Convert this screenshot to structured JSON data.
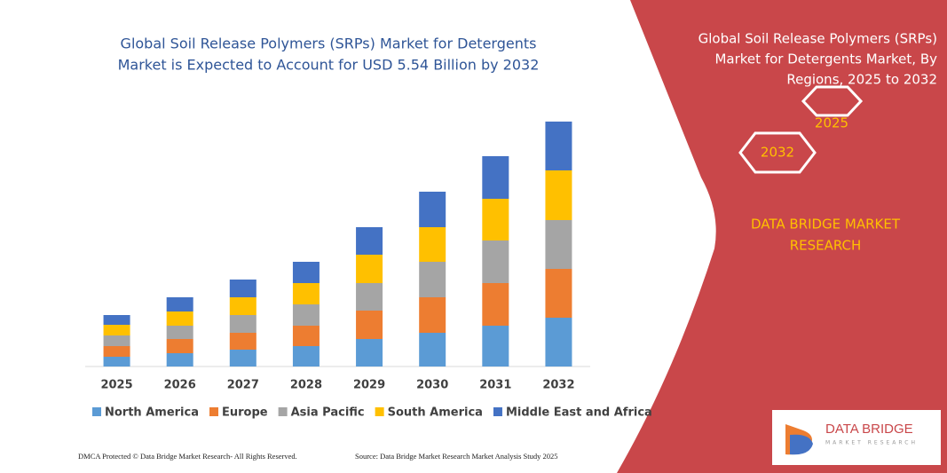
{
  "chart_data": {
    "type": "stacked-bar",
    "title": [
      "Global Soil Release Polymers (SRPs) Market for Detergents",
      "Market is Expected to Account for USD 5.54 Billion by 2032"
    ],
    "categories": [
      "2025",
      "2026",
      "2027",
      "2028",
      "2029",
      "2030",
      "2031",
      "2032"
    ],
    "series": [
      {
        "name": "North America",
        "color": "#5b9bd5",
        "values": [
          11,
          15,
          19,
          23,
          31,
          38,
          46,
          55
        ]
      },
      {
        "name": "Europe",
        "color": "#ed7d31",
        "values": [
          12,
          16,
          19,
          23,
          32,
          40,
          48,
          55
        ]
      },
      {
        "name": "Asia Pacific",
        "color": "#a5a5a5",
        "values": [
          12,
          15,
          20,
          24,
          31,
          40,
          48,
          55
        ]
      },
      {
        "name": "South America",
        "color": "#ffc000",
        "values": [
          12,
          16,
          20,
          24,
          32,
          39,
          47,
          56
        ]
      },
      {
        "name": "Middle East and Africa",
        "color": "#4472c4",
        "values": [
          11,
          16,
          20,
          24,
          31,
          40,
          48,
          55
        ]
      }
    ]
  },
  "panel": {
    "heading": [
      "Global Soil Release Polymers (SRPs)",
      "Market for Detergents Market, By",
      "Regions, 2025 to 2032"
    ],
    "hexagons": [
      "2025",
      "2032"
    ],
    "brand": [
      "DATA BRIDGE MARKET",
      "RESEARCH"
    ]
  },
  "logo": {
    "name": "DATA BRIDGE",
    "tagline": "MARKET RESEARCH"
  },
  "footer": {
    "left": "DMCA Protected © Data Bridge Market Research- All Rights Reserved.",
    "right": "Source: Data Bridge Market Research Market Analysis Study 2025"
  }
}
